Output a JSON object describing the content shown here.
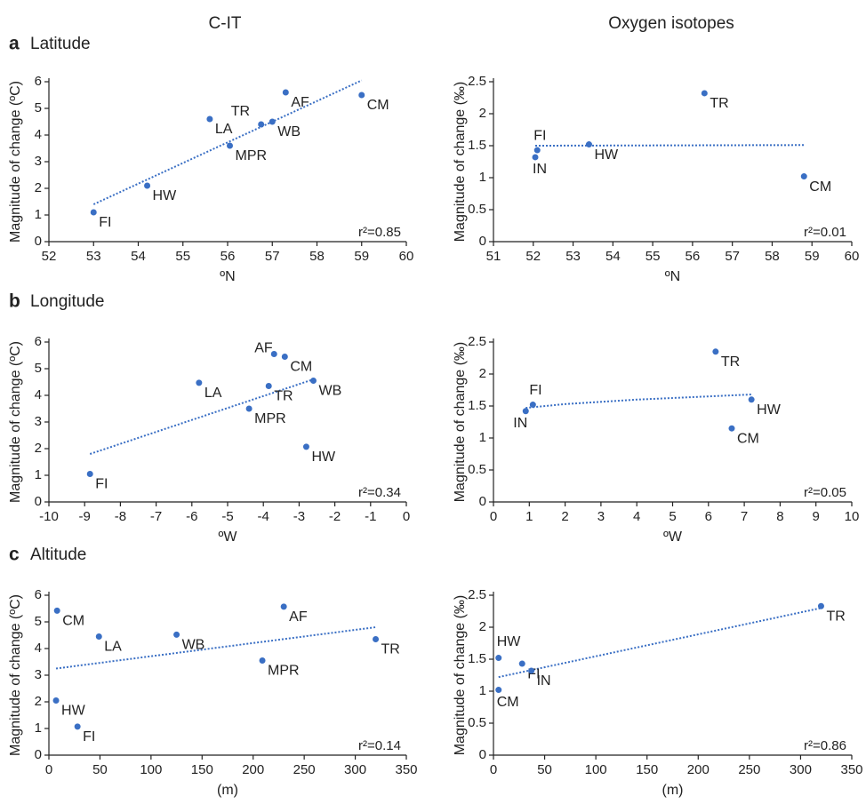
{
  "columns": [
    "C-IT",
    "Oxygen isotopes"
  ],
  "rows": [
    {
      "letter": "a",
      "label": "Latitude"
    },
    {
      "letter": "b",
      "label": "Longitude"
    },
    {
      "letter": "c",
      "label": "Altitude"
    }
  ],
  "chart_data": [
    {
      "type": "scatter",
      "xlabel": "ºN",
      "ylabel": "Magnitude of change (ºC)",
      "annotation": "r²=0.85",
      "color": "#3a6fc4",
      "labels": [
        "FI",
        "HW",
        "LA",
        "MPR",
        "TR",
        "WB",
        "AF",
        "CM"
      ],
      "x": [
        53.0,
        54.2,
        55.6,
        56.05,
        56.75,
        57.0,
        57.3,
        59.0
      ],
      "y": [
        1.1,
        2.1,
        4.6,
        3.6,
        4.4,
        4.5,
        5.6,
        5.5
      ],
      "trend": {
        "x": [
          53.0,
          59.0
        ],
        "y": [
          1.4,
          6.05
        ]
      },
      "xlim": [
        52,
        60
      ],
      "xticks": [
        52,
        53,
        54,
        55,
        56,
        57,
        58,
        59,
        60
      ],
      "ylim": [
        0,
        6
      ],
      "yticks": [
        0,
        1,
        2,
        3,
        4,
        5,
        6
      ]
    },
    {
      "type": "scatter",
      "xlabel": "ºN",
      "ylabel": "Magnitude of change (‰)",
      "annotation": "r²=0.01",
      "color": "#3a6fc4",
      "labels": [
        "FI",
        "IN",
        "HW",
        "TR",
        "CM"
      ],
      "x": [
        52.1,
        52.05,
        53.4,
        56.3,
        58.8
      ],
      "y": [
        1.43,
        1.32,
        1.52,
        2.32,
        1.02
      ],
      "trend": {
        "x": [
          52.05,
          58.8
        ],
        "y": [
          1.5,
          1.51
        ]
      },
      "xlim": [
        51,
        60
      ],
      "xticks": [
        51,
        52,
        53,
        54,
        55,
        56,
        57,
        58,
        59,
        60
      ],
      "ylim": [
        0,
        2.5
      ],
      "yticks": [
        0,
        0.5,
        1,
        1.5,
        2,
        2.5
      ]
    },
    {
      "type": "scatter",
      "xlabel": "ºW",
      "ylabel": "Magnitude of change (ºC)",
      "annotation": "r²=0.34",
      "color": "#3a6fc4",
      "labels": [
        "FI",
        "LA",
        "MPR",
        "TR",
        "AF",
        "CM",
        "WB",
        "HW"
      ],
      "x": [
        -8.85,
        -5.8,
        -4.4,
        -3.85,
        -3.7,
        -3.4,
        -2.6,
        -2.8
      ],
      "y": [
        1.05,
        4.47,
        3.5,
        4.35,
        5.55,
        5.45,
        4.55,
        2.07
      ],
      "trend": {
        "x": [
          -8.85,
          -2.6
        ],
        "y": [
          1.8,
          4.6
        ]
      },
      "xlim": [
        -10,
        0
      ],
      "xticks": [
        -10,
        -9,
        -8,
        -7,
        -6,
        -5,
        -4,
        -3,
        -2,
        -1,
        0
      ],
      "ylim": [
        0,
        6
      ],
      "yticks": [
        0,
        1,
        2,
        3,
        4,
        5,
        6
      ]
    },
    {
      "type": "scatter",
      "xlabel": "ºW",
      "ylabel": "Magnitude of change (‰)",
      "annotation": "r²=0.05",
      "color": "#3a6fc4",
      "labels": [
        "IN",
        "FI",
        "TR",
        "HW",
        "CM"
      ],
      "x": [
        0.9,
        1.1,
        6.2,
        7.2,
        6.65
      ],
      "y": [
        1.42,
        1.52,
        2.35,
        1.6,
        1.15
      ],
      "trend": {
        "x": [
          0.9,
          2,
          4,
          6,
          7.2
        ],
        "y": [
          1.47,
          1.53,
          1.6,
          1.65,
          1.68
        ]
      },
      "xlim": [
        0,
        10
      ],
      "xticks": [
        0,
        1,
        2,
        3,
        4,
        5,
        6,
        7,
        8,
        9,
        10
      ],
      "ylim": [
        0,
        2.5
      ],
      "yticks": [
        0,
        0.5,
        1,
        1.5,
        2,
        2.5
      ]
    },
    {
      "type": "scatter",
      "xlabel": "(m)",
      "ylabel": "Magnitude of change (ºC)",
      "annotation": "r²=0.14",
      "color": "#3a6fc4",
      "labels": [
        "CM",
        "HW",
        "FI",
        "LA",
        "WB",
        "MPR",
        "AF",
        "TR"
      ],
      "x": [
        8,
        7,
        28,
        49,
        125,
        209,
        230,
        320
      ],
      "y": [
        5.42,
        2.05,
        1.07,
        4.45,
        4.52,
        3.55,
        5.57,
        4.35
      ],
      "trend": {
        "x": [
          7,
          320
        ],
        "y": [
          3.25,
          4.8
        ]
      },
      "xlim": [
        0,
        350
      ],
      "xticks": [
        0,
        50,
        100,
        150,
        200,
        250,
        300,
        350
      ],
      "ylim": [
        0,
        6
      ],
      "yticks": [
        0,
        1,
        2,
        3,
        4,
        5,
        6
      ]
    },
    {
      "type": "scatter",
      "xlabel": "(m)",
      "ylabel": "Magnitude of change (‰)",
      "annotation": "r²=0.86",
      "color": "#3a6fc4",
      "labels": [
        "HW",
        "CM",
        "FI",
        "IN",
        "TR"
      ],
      "x": [
        5,
        5,
        28,
        37,
        320
      ],
      "y": [
        1.52,
        1.02,
        1.43,
        1.32,
        2.33
      ],
      "trend": {
        "x": [
          5,
          320
        ],
        "y": [
          1.22,
          2.3
        ]
      },
      "xlim": [
        0,
        350
      ],
      "xticks": [
        0,
        50,
        100,
        150,
        200,
        250,
        300,
        350
      ],
      "ylim": [
        0,
        2.5
      ],
      "yticks": [
        0,
        0.5,
        1,
        1.5,
        2,
        2.5
      ]
    }
  ]
}
